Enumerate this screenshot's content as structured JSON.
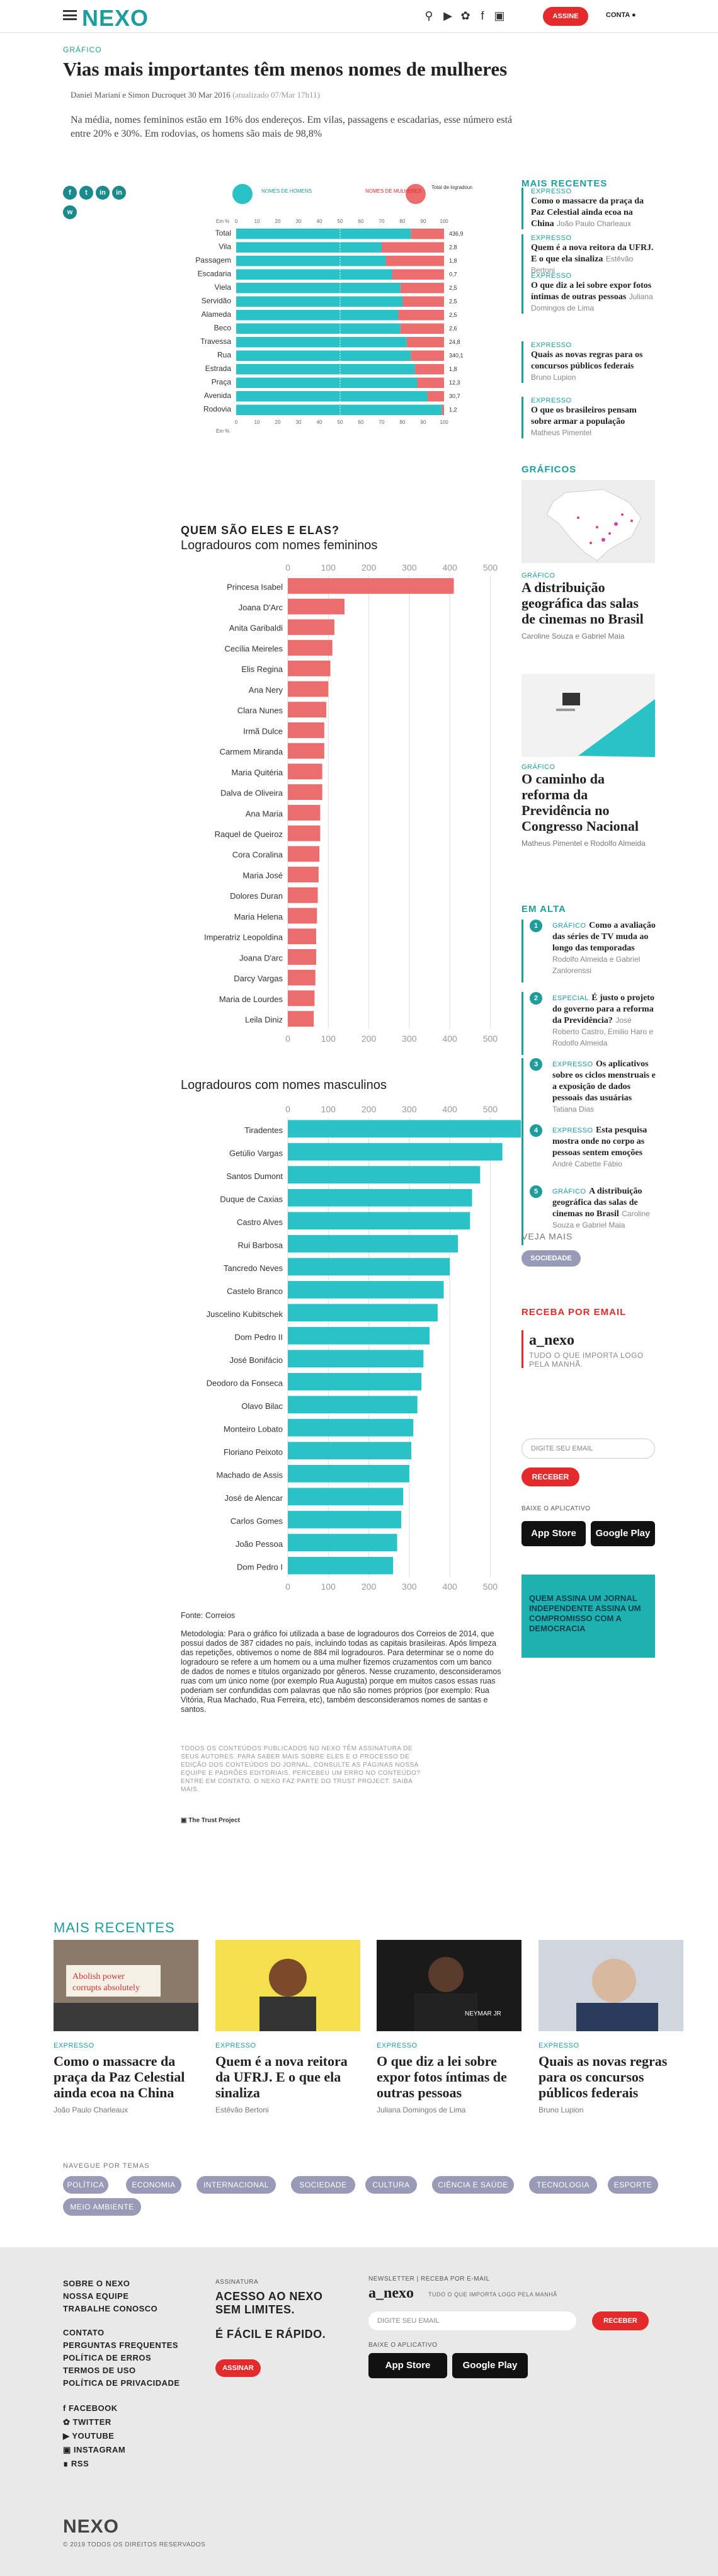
{
  "header": {
    "logo": "NEXO",
    "assine": "ASSINE",
    "conta": "CONTA"
  },
  "article": {
    "kicker": "GRÁFICO",
    "title": "Vias mais importantes têm menos nomes de mulheres",
    "byline": "Daniel Mariani e Simon Ducroquet 30 Mar 2016",
    "updated": "(atualizado 07/Mar 17h11)",
    "lead": "Na média, nomes femininos estão em 16% dos endereços. Em vilas, passagens e escadarias, esse número está entre 20% e 30%. Em rodovias, os homens são mais de 98,8%"
  },
  "share": [
    "f",
    "t",
    "in",
    "in",
    "w"
  ],
  "chart_data": [
    {
      "type": "bar",
      "title": "",
      "legend": [
        "NOMES DE HOMENS",
        "NOMES DE MULHERES"
      ],
      "total_label": "Total de logradouros, em mil",
      "xlabel": "Em %",
      "xlim": [
        0,
        100
      ],
      "colors": {
        "homens": "#29c2c7",
        "mulheres": "#eb6d6d"
      },
      "categories": [
        "Total",
        "Vila",
        "Passagem",
        "Escadaria",
        "Viela",
        "Servidão",
        "Alameda",
        "Beco",
        "Travessa",
        "Rua",
        "Estrada",
        "Praça",
        "Avenida",
        "Rodovia"
      ],
      "series": [
        {
          "name": "NOMES DE HOMENS",
          "values": [
            84,
            70,
            72,
            75,
            79,
            80,
            78,
            79,
            82,
            84,
            86,
            87,
            92,
            99
          ]
        },
        {
          "name": "NOMES DE MULHERES",
          "values": [
            16,
            30,
            28,
            25,
            21,
            20,
            22,
            21,
            18,
            16,
            14,
            13,
            8,
            1
          ]
        }
      ],
      "totals": [
        "436,9",
        "2,8",
        "1,8",
        "0,7",
        "2,5",
        "2,5",
        "2,5",
        "2,6",
        "24,8",
        "340,1",
        "1,8",
        "12,3",
        "30,7",
        "1,2"
      ]
    },
    {
      "type": "bar",
      "title": "Logradouros com nomes femininos",
      "xlim": [
        0,
        700
      ],
      "ticks": [
        "0",
        "100",
        "200",
        "300",
        "400",
        "500",
        "600",
        "700"
      ],
      "color": "#eb6d6d",
      "categories": [
        "Princesa Isabel",
        "Joana D'Arc",
        "Anita Garibaldi",
        "Cecília Meireles",
        "Elis Regina",
        "Ana Nery",
        "Clara Nunes",
        "Irmã Dulce",
        "Carmem Miranda",
        "Maria Quitéria",
        "Dalva de Oliveira",
        "Ana Maria",
        "Raquel de Queiroz",
        "Cora Coralina",
        "Maria José",
        "Dolores Duran",
        "Maria Helena",
        "Imperatriz Leopoldina",
        "Joana D'arc",
        "Darcy Vargas",
        "Maria de Lourdes",
        "Leila Diniz"
      ],
      "values": [
        410,
        140,
        115,
        110,
        105,
        100,
        95,
        90,
        90,
        85,
        85,
        80,
        80,
        78,
        76,
        74,
        72,
        70,
        70,
        68,
        66,
        64
      ]
    },
    {
      "type": "bar",
      "title": "Logradouros com nomes masculinos",
      "xlim": [
        0,
        700
      ],
      "ticks": [
        "0",
        "100",
        "200",
        "300",
        "400",
        "500",
        "600",
        "700"
      ],
      "color": "#29c2c7",
      "categories": [
        "Tiradentes",
        "Getúlio Vargas",
        "Santos Dumont",
        "Duque de Caxias",
        "Castro Alves",
        "Rui Barbosa",
        "Tancredo Neves",
        "Castelo Branco",
        "Juscelino Kubitschek",
        "Dom Pedro II",
        "José Bonifácio",
        "Deodoro da Fonseca",
        "Olavo Bilac",
        "Monteiro Lobato",
        "Floriano Peixoto",
        "Machado de Assis",
        "José de Alencar",
        "Carlos Gomes",
        "João Pessoa",
        "Dom Pedro I"
      ],
      "values": [
        660,
        530,
        475,
        455,
        450,
        420,
        400,
        385,
        370,
        350,
        335,
        330,
        320,
        310,
        305,
        300,
        285,
        280,
        270,
        260
      ]
    }
  ],
  "section": {
    "quem": "QUEM SÃO ELES E ELAS?"
  },
  "notes": {
    "fonte": "Fonte: Correios",
    "metodologia": "Metodologia: Para o gráfico foi utilizada a base de logradouros dos Correios de 2014, que possui dados de 387 cidades no país, incluindo todas as capitais brasileiras. Após limpeza das repetições, obtivemos o nome de 884 mil logradouros. Para determinar se o nome do logradouro se refere a um homem ou a uma mulher fizemos cruzamentos com um banco de dados de nomes e títulos organizado por gêneros. Nesse cruzamento, desconsideramos ruas com um único nome (por exemplo Rua Augusta) porque em muitos casos essas ruas poderiam ser confundidas com palavras que não são nomes próprios (por exemplo: Rua Vitória, Rua Machado, Rua Ferreira, etc), também desconsideramos nomes de santas e santos.",
    "small": "TODOS OS CONTEÚDOS PUBLICADOS NO NEXO TÊM ASSINATURA DE SEUS AUTORES. PARA SABER MAIS SOBRE ELES E O PROCESSO DE EDIÇÃO DOS CONTEÚDOS DO JORNAL, CONSULTE AS PÁGINAS NOSSA EQUIPE E PADRÕES EDITORIAIS. PERCEBEU UM ERRO NO CONTEÚDO? ENTRE EM CONTATO. O NEXO FAZ PARTE DO TRUST PROJECT. SAIBA MAIS.",
    "trust": "The Trust Project"
  },
  "sidebar": {
    "mais_recentes": "MAIS RECENTES",
    "recentes": [
      {
        "k": "EXPRESSO",
        "t": "Como o massacre da praça da Paz Celestial ainda ecoa na China",
        "a": "João Paulo Charleaux"
      },
      {
        "k": "EXPRESSO",
        "t": "Quem é a nova reitora da UFRJ. E o que ela sinaliza",
        "a": "Estêvão Bertoni"
      },
      {
        "k": "EXPRESSO",
        "t": "O que diz a lei sobre expor fotos íntimas de outras pessoas",
        "a": "Juliana Domingos de Lima"
      },
      {
        "k": "EXPRESSO",
        "t": "Quais as novas regras para os concursos públicos federais",
        "a": "Bruno Lupion"
      },
      {
        "k": "EXPRESSO",
        "t": "O que os brasileiros pensam sobre armar a população",
        "a": "Matheus Pimentel"
      }
    ],
    "graficos": "GRÁFICOS",
    "gcards": [
      {
        "k": "GRÁFICO",
        "t": "A distribuição geográfica das salas de cinemas no Brasil",
        "a": "Caroline Souza e Gabriel Maia"
      },
      {
        "k": "GRÁFICO",
        "t": "O caminho da reforma da Previdência no Congresso Nacional",
        "a": "Matheus Pimentel e Rodolfo Almeida"
      }
    ],
    "em_alta": "EM ALTA",
    "alta": [
      {
        "n": "1",
        "k": "GRÁFICO",
        "t": "Como a avaliação das séries de TV muda ao longo das temporadas",
        "a": "Rodolfo Almeida e Gabriel Zanlorenssi"
      },
      {
        "n": "2",
        "k": "ESPECIAL",
        "t": "É justo o projeto do governo para a reforma da Previdência?",
        "a": "José Roberto Castro, Emilio Haro e Rodolfo Almeida"
      },
      {
        "n": "3",
        "k": "EXPRESSO",
        "t": "Os aplicativos sobre os ciclos menstruais e a exposição de dados pessoais das usuárias",
        "a": "Tatiana Dias"
      },
      {
        "n": "4",
        "k": "EXPRESSO",
        "t": "Esta pesquisa mostra onde no corpo as pessoas sentem emoções",
        "a": "André Cabette Fábio"
      },
      {
        "n": "5",
        "k": "GRÁFICO",
        "t": "A distribuição geográfica das salas de cinemas no Brasil",
        "a": "Caroline Souza e Gabriel Maia"
      }
    ],
    "veja": "VEJA MAIS",
    "sociedade": "SOCIEDADE",
    "receba": "RECEBA POR EMAIL",
    "anexo": "a_nexo",
    "anexo_t": "TUDO O QUE IMPORTA LOGO PELA MANHÃ.",
    "email_ph": "DIGITE SEU EMAIL",
    "receber": "RECEBER",
    "baixe": "BAIXE O APLICATIVO",
    "appstore": "App Store",
    "googleplay": "Google Play",
    "teal": "QUEM ASSINA UM JORNAL INDEPENDENTE ASSINA UM COMPROMISSO COM A DEMOCRACIA"
  },
  "bottom": {
    "mais_recentes": "MAIS RECENTES",
    "cards": [
      {
        "k": "EXPRESSO",
        "t": "Como o massacre da praça da Paz Celestial ainda ecoa na China",
        "a": "João Paulo Charleaux"
      },
      {
        "k": "EXPRESSO",
        "t": "Quem é a nova reitora da UFRJ. E o que ela sinaliza",
        "a": "Estêvão Bertoni"
      },
      {
        "k": "EXPRESSO",
        "t": "O que diz a lei sobre expor fotos íntimas de outras pessoas",
        "a": "Juliana Domingos de Lima"
      },
      {
        "k": "EXPRESSO",
        "t": "Quais as novas regras para os concursos públicos federais",
        "a": "Bruno Lupion"
      }
    ],
    "navegue": "NAVEGUE POR TEMAS",
    "tags": [
      "POLÍTICA",
      "ECONOMIA",
      "INTERNACIONAL",
      "SOCIEDADE",
      "CULTURA",
      "CIÊNCIA E SAÚDE",
      "TECNOLOGIA",
      "ESPORTE",
      "MEIO AMBIENTE"
    ]
  },
  "footer": {
    "links1": [
      "SOBRE O NEXO",
      "NOSSA EQUIPE",
      "TRABALHE CONOSCO"
    ],
    "links2": [
      "CONTATO",
      "PERGUNTAS FREQUENTES",
      "POLÍTICA DE ERROS",
      "TERMOS DE USO",
      "POLÍTICA DE PRIVACIDADE"
    ],
    "social": [
      "FACEBOOK",
      "TWITTER",
      "YOUTUBE",
      "INSTAGRAM",
      "RSS"
    ],
    "assinatura": "ASSINATURA",
    "acesso": "ACESSO AO NEXO SEM LIMITES.",
    "facil": "É FÁCIL E RÁPIDO.",
    "assinar": "ASSINAR",
    "newsletter": "NEWSLETTER | RECEBA POR E-MAIL",
    "anexo": "a_nexo",
    "anexo_t": "TUDO O QUE IMPORTA LOGO PELA MANHÃ",
    "email_ph": "DIGITE SEU EMAIL",
    "receber": "RECEBER",
    "baixe": "BAIXE O APLICATIVO",
    "appstore": "App Store",
    "googleplay": "Google Play",
    "logo": "NEXO",
    "copyright": "© 2019 TODOS OS DIREITOS RESERVADOS"
  }
}
